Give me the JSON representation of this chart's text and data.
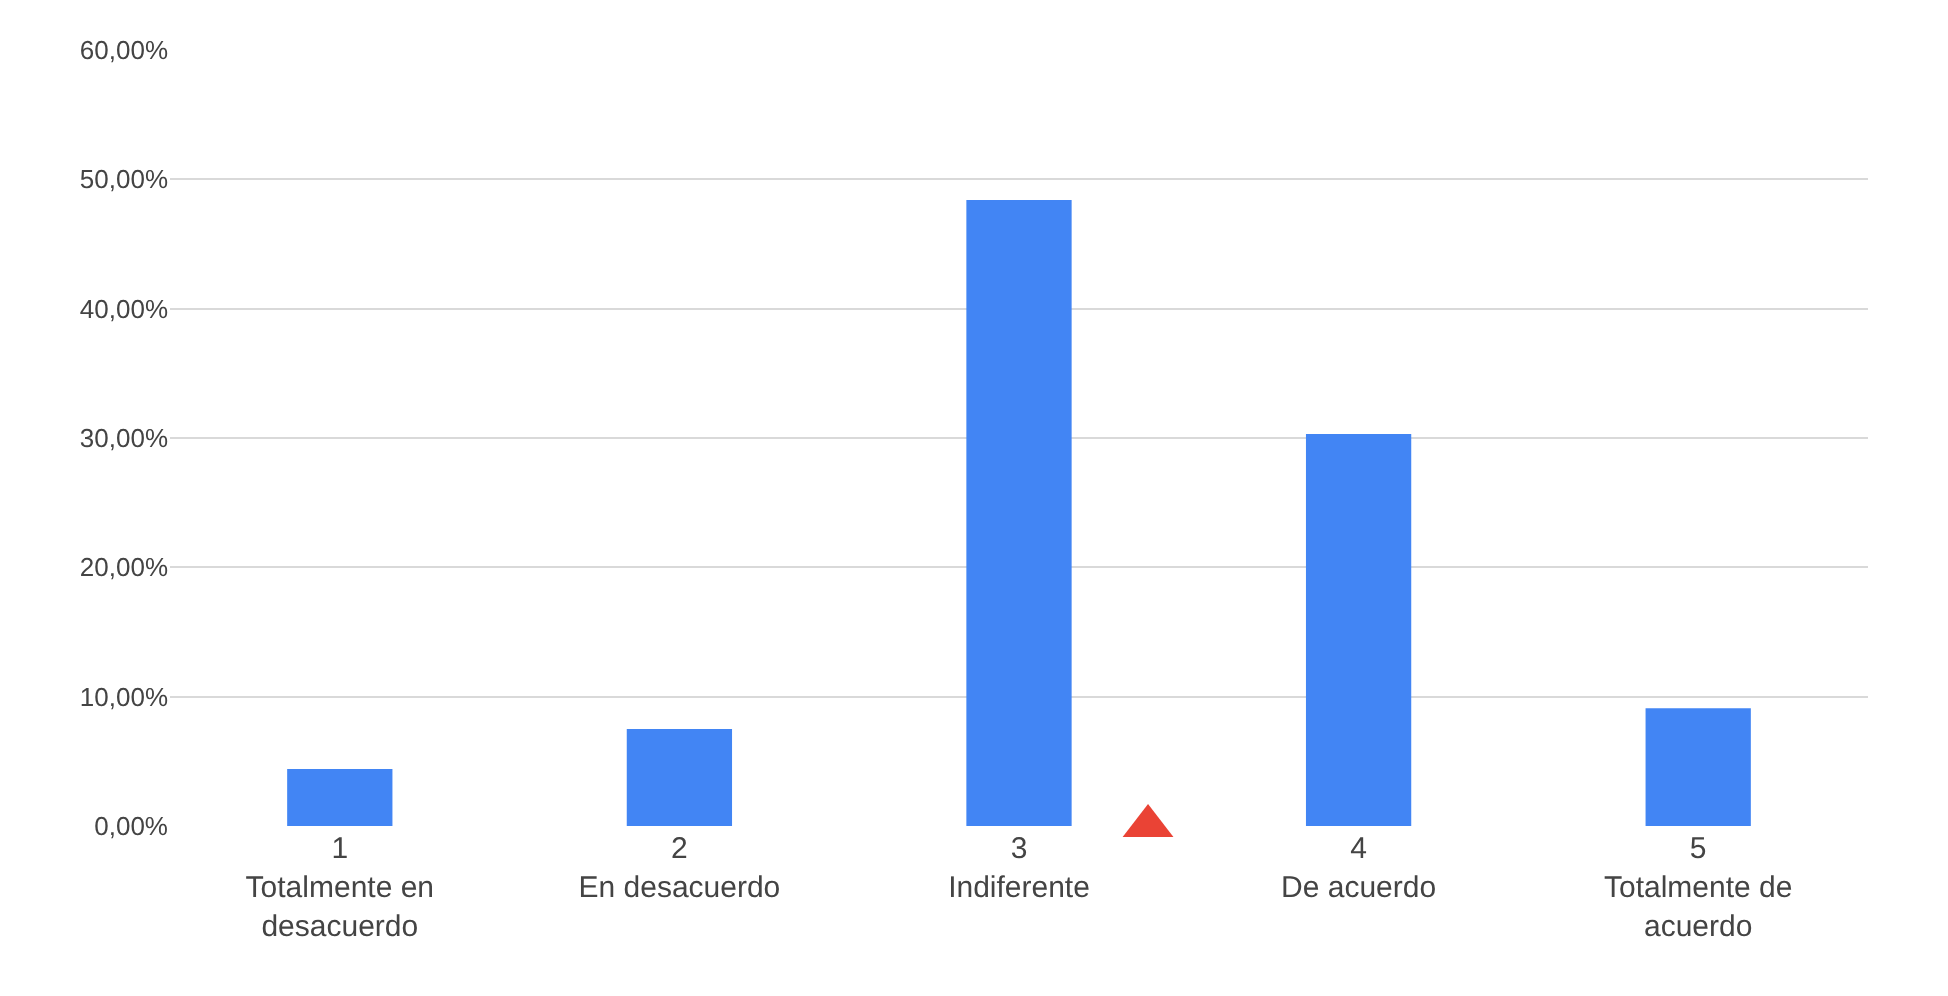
{
  "chart_data": {
    "type": "bar",
    "x": [
      1,
      2,
      3,
      4,
      5
    ],
    "xlim": [
      0.5,
      5.5
    ],
    "xticks": [
      {
        "value": 1,
        "label": "1\nTotalmente en\ndesacuerdo"
      },
      {
        "value": 2,
        "label": "2\nEn desacuerdo"
      },
      {
        "value": 3,
        "label": "3\nIndiferente"
      },
      {
        "value": 4,
        "label": "4\nDe acuerdo"
      },
      {
        "value": 5,
        "label": "5\nTotalmente de\nacuerdo"
      }
    ],
    "series": [
      {
        "color": "#4285f4",
        "values": [
          4.4,
          7.5,
          48.4,
          30.3,
          9.1
        ]
      },
      {
        "type": "scatter",
        "color": "#ea4335",
        "x": [
          3.38
        ],
        "values": [
          0
        ],
        "marker": "triangle"
      }
    ],
    "ylim": [
      0,
      60
    ],
    "yticks": [
      {
        "value": 0,
        "label": "0,00%"
      },
      {
        "value": 10,
        "label": "10,00%"
      },
      {
        "value": 20,
        "label": "20,00%"
      },
      {
        "value": 30,
        "label": "30,00%"
      },
      {
        "value": 40,
        "label": "40,00%"
      },
      {
        "value": 50,
        "label": "50,00%"
      },
      {
        "value": 60,
        "label": "60,00%"
      }
    ],
    "grid": "y"
  }
}
